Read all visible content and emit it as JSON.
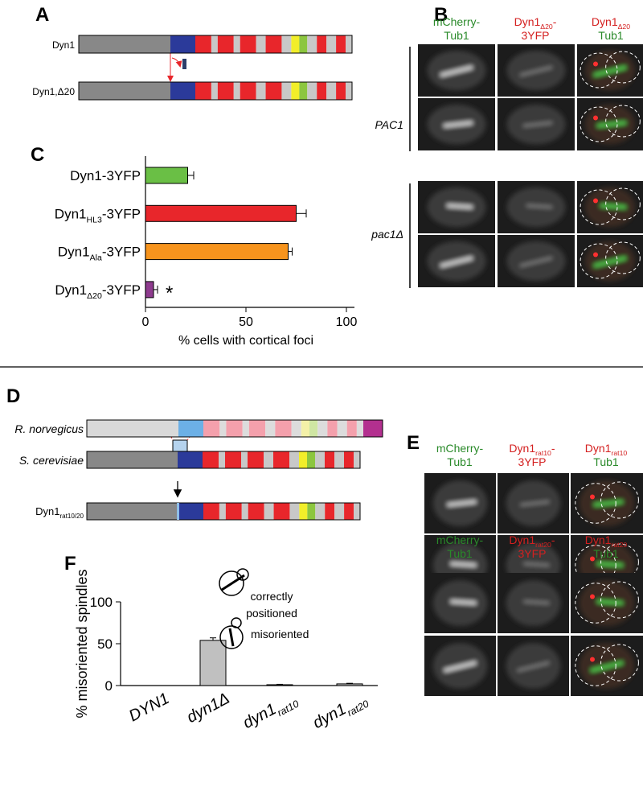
{
  "panel_a": {
    "letter": "A",
    "row1": [
      [
        "Dyn1"
      ]
    ],
    "row2": [
      [
        "Dyn1",
        "Δ20"
      ]
    ]
  },
  "panel_b": {
    "letter": "B",
    "headers": [
      [
        [
          "mCherry-"
        ],
        [
          "Tub1"
        ]
      ],
      [
        [
          "Dyn1",
          "Δ20",
          "-"
        ],
        [
          "3YFP"
        ]
      ],
      [
        [
          "Dyn1",
          "Δ20"
        ],
        [
          "Tub1"
        ]
      ]
    ],
    "row_labels": [
      "PAC1",
      "pac1Δ"
    ]
  },
  "panel_d": {
    "letter": "D",
    "labels": [
      [
        "R. norvegicus"
      ],
      [
        "S. cerevisiae"
      ],
      [
        "Dyn1",
        "rat10/20"
      ]
    ]
  },
  "panel_e": {
    "letter": "E",
    "headers1": [
      [
        [
          "mCherry-"
        ],
        [
          "Tub1"
        ]
      ],
      [
        [
          "Dyn1",
          "rat10",
          "-"
        ],
        [
          "3YFP"
        ]
      ],
      [
        [
          "Dyn1",
          "rat10"
        ],
        [
          "Tub1"
        ]
      ]
    ],
    "headers2": [
      [
        [
          "mCherry-"
        ],
        [
          "Tub1"
        ]
      ],
      [
        [
          "Dyn1",
          "rat20",
          "-"
        ],
        [
          "3YFP"
        ]
      ],
      [
        [
          "Dyn1",
          "rat20"
        ],
        [
          "Tub1"
        ]
      ]
    ]
  },
  "chart_data": [
    {
      "type": "hbar",
      "panel_label": "C",
      "categories": [
        [
          "Dyn1-3YFP"
        ],
        [
          "Dyn1",
          "HL3",
          "-3YFP"
        ],
        [
          "Dyn1",
          "Ala",
          "-3YFP"
        ],
        [
          "Dyn1",
          "Δ20",
          "-3YFP"
        ]
      ],
      "values": [
        21,
        75,
        71,
        4
      ],
      "errors": [
        3,
        5,
        2,
        2
      ],
      "colors": [
        "#6abf45",
        "#e8262b",
        "#f7941d",
        "#8e3b8e"
      ],
      "annotation": "*",
      "xlim": [
        0,
        104
      ],
      "xticks": [
        0,
        50,
        100
      ],
      "xlabel": "% cells with cortical foci"
    },
    {
      "type": "bar",
      "panel_label": "F",
      "categories": [
        [
          "DYN1"
        ],
        [
          "dyn1Δ"
        ],
        [
          "dyn1",
          "rat10"
        ],
        [
          "dyn1",
          "rat20"
        ]
      ],
      "values": [
        0,
        54,
        1,
        2
      ],
      "errors": [
        0,
        3,
        0.5,
        0.7
      ],
      "color": "#c0c0c0",
      "ylim": [
        0,
        100
      ],
      "yticks": [
        0,
        50,
        100
      ],
      "ylabel": "% misoriented spindles",
      "legend": [
        [
          "correctly",
          "positioned"
        ],
        [
          "misoriented"
        ]
      ]
    }
  ]
}
